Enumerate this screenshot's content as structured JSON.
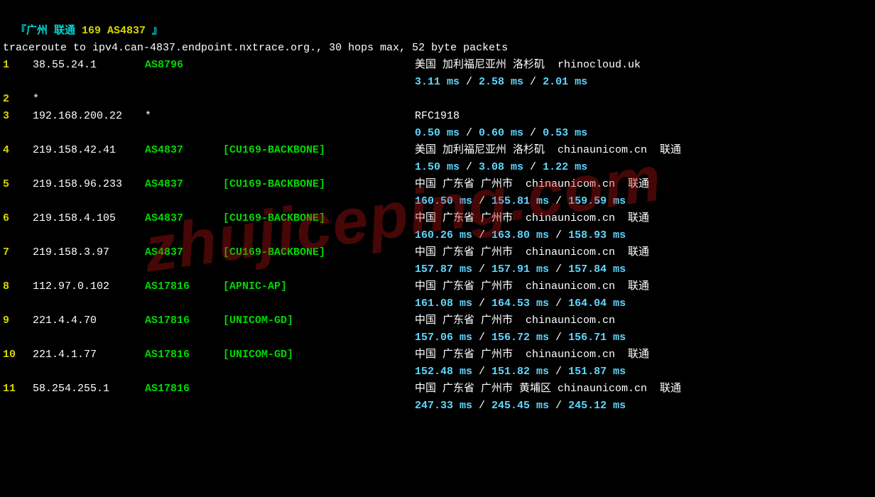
{
  "header": {
    "prefix": "『广州 联通 ",
    "asn_part": "169 AS4837",
    "suffix": " 』"
  },
  "trace_line": "traceroute to ipv4.can-4837.endpoint.nxtrace.org., 30 hops max, 52 byte packets",
  "watermark": "zhujiceping.com",
  "colors": {
    "bg": "#000000",
    "white": "#ffffff",
    "cyan": "#00d7d7",
    "yellow": "#d7d700",
    "green": "#00d700",
    "latency_cyan": "#5fd7ff"
  },
  "hops": [
    {
      "n": "1",
      "ip": "38.55.24.1",
      "asn": "AS8796",
      "tag": "",
      "loc": "美国 加利福尼亚州 洛杉矶  rhinocloud.uk",
      "lat": [
        "3.11 ms",
        "2.58 ms",
        "2.01 ms"
      ]
    },
    {
      "n": "2",
      "ip": "*",
      "asn": "",
      "tag": "",
      "loc": "",
      "lat": null
    },
    {
      "n": "3",
      "ip": "192.168.200.22",
      "asn": "*",
      "asn_plain": true,
      "tag": "",
      "loc": "RFC1918",
      "lat": [
        "0.50 ms",
        "0.60 ms",
        "0.53 ms"
      ]
    },
    {
      "n": "4",
      "ip": "219.158.42.41",
      "asn": "AS4837",
      "tag": "[CU169-BACKBONE]",
      "loc": "美国 加利福尼亚州 洛杉矶  chinaunicom.cn  联通",
      "lat": [
        "1.50 ms",
        "3.08 ms",
        "1.22 ms"
      ]
    },
    {
      "n": "5",
      "ip": "219.158.96.233",
      "asn": "AS4837",
      "tag": "[CU169-BACKBONE]",
      "loc": "中国 广东省 广州市  chinaunicom.cn  联通",
      "lat": [
        "160.50 ms",
        "155.81 ms",
        "159.59 ms"
      ]
    },
    {
      "n": "6",
      "ip": "219.158.4.105",
      "asn": "AS4837",
      "tag": "[CU169-BACKBONE]",
      "loc": "中国 广东省 广州市  chinaunicom.cn  联通",
      "lat": [
        "160.26 ms",
        "163.80 ms",
        "158.93 ms"
      ]
    },
    {
      "n": "7",
      "ip": "219.158.3.97",
      "asn": "AS4837",
      "tag": "[CU169-BACKBONE]",
      "loc": "中国 广东省 广州市  chinaunicom.cn  联通",
      "lat": [
        "157.87 ms",
        "157.91 ms",
        "157.84 ms"
      ]
    },
    {
      "n": "8",
      "ip": "112.97.0.102",
      "asn": "AS17816",
      "tag": "[APNIC-AP]",
      "loc": "中国 广东省 广州市  chinaunicom.cn  联通",
      "lat": [
        "161.08 ms",
        "164.53 ms",
        "164.04 ms"
      ]
    },
    {
      "n": "9",
      "ip": "221.4.4.70",
      "asn": "AS17816",
      "tag": "[UNICOM-GD]",
      "loc": "中国 广东省 广州市  chinaunicom.cn",
      "lat": [
        "157.06 ms",
        "156.72 ms",
        "156.71 ms"
      ]
    },
    {
      "n": "10",
      "ip": "221.4.1.77",
      "asn": "AS17816",
      "tag": "[UNICOM-GD]",
      "loc": "中国 广东省 广州市  chinaunicom.cn  联通",
      "lat": [
        "152.48 ms",
        "151.82 ms",
        "151.87 ms"
      ]
    },
    {
      "n": "11",
      "ip": "58.254.255.1",
      "asn": "AS17816",
      "tag": "",
      "loc": "中国 广东省 广州市 黄埔区 chinaunicom.cn  联通",
      "lat": [
        "247.33 ms",
        "245.45 ms",
        "245.12 ms"
      ]
    }
  ]
}
